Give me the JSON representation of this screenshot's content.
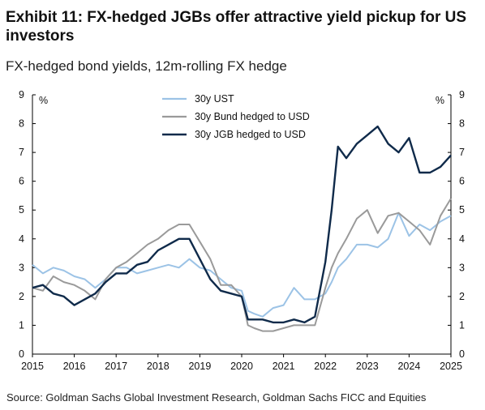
{
  "header": {
    "title": "Exhibit 11: FX-hedged JGBs offer attractive yield pickup for US investors",
    "subtitle": "FX-hedged bond yields, 12m-rolling FX hedge"
  },
  "footer": {
    "source": "Source: Goldman Sachs Global Investment Research, Goldman Sachs FICC and Equities"
  },
  "chart_data": {
    "type": "line",
    "title": "Exhibit 11: FX-hedged JGBs offer attractive yield pickup for US investors",
    "subtitle": "FX-hedged bond yields, 12m-rolling FX hedge",
    "ylabel_left": "%",
    "ylabel_right": "%",
    "xlim": [
      2015,
      2025
    ],
    "ylim": [
      0,
      9
    ],
    "x_ticks": [
      "2015",
      "2016",
      "2017",
      "2018",
      "2019",
      "2020",
      "2021",
      "2022",
      "2023",
      "2024",
      "2025"
    ],
    "y_ticks": [
      "0",
      "1",
      "2",
      "3",
      "4",
      "5",
      "6",
      "7",
      "8",
      "9"
    ],
    "grid": false,
    "legend_position": "top-center",
    "series": [
      {
        "name": "30y UST",
        "color": "#9cc3e6",
        "x": [
          2015.0,
          2015.25,
          2015.5,
          2015.75,
          2016.0,
          2016.25,
          2016.5,
          2016.75,
          2017.0,
          2017.25,
          2017.5,
          2017.75,
          2018.0,
          2018.25,
          2018.5,
          2018.75,
          2019.0,
          2019.25,
          2019.5,
          2019.75,
          2020.0,
          2020.15,
          2020.3,
          2020.5,
          2020.75,
          2021.0,
          2021.25,
          2021.5,
          2021.75,
          2022.0,
          2022.15,
          2022.3,
          2022.5,
          2022.75,
          2023.0,
          2023.25,
          2023.5,
          2023.75,
          2024.0,
          2024.25,
          2024.5,
          2024.75,
          2025.0
        ],
        "y": [
          3.1,
          2.8,
          3.0,
          2.9,
          2.7,
          2.6,
          2.3,
          2.6,
          3.0,
          3.0,
          2.8,
          2.9,
          3.0,
          3.1,
          3.0,
          3.3,
          3.0,
          2.9,
          2.6,
          2.3,
          2.2,
          1.5,
          1.4,
          1.3,
          1.6,
          1.7,
          2.3,
          1.9,
          1.9,
          2.1,
          2.5,
          3.0,
          3.3,
          3.8,
          3.8,
          3.7,
          4.0,
          4.9,
          4.1,
          4.5,
          4.3,
          4.6,
          4.8
        ]
      },
      {
        "name": "30y Bund hedged to USD",
        "color": "#9a9a9a",
        "x": [
          2015.0,
          2015.25,
          2015.5,
          2015.75,
          2016.0,
          2016.25,
          2016.5,
          2016.75,
          2017.0,
          2017.25,
          2017.5,
          2017.75,
          2018.0,
          2018.25,
          2018.5,
          2018.75,
          2019.0,
          2019.25,
          2019.5,
          2019.75,
          2020.0,
          2020.15,
          2020.3,
          2020.5,
          2020.75,
          2021.0,
          2021.25,
          2021.5,
          2021.75,
          2022.0,
          2022.15,
          2022.3,
          2022.5,
          2022.75,
          2023.0,
          2023.25,
          2023.5,
          2023.75,
          2024.0,
          2024.25,
          2024.5,
          2024.75,
          2025.0
        ],
        "y": [
          2.3,
          2.2,
          2.7,
          2.5,
          2.4,
          2.2,
          1.9,
          2.6,
          3.0,
          3.2,
          3.5,
          3.8,
          4.0,
          4.3,
          4.5,
          4.5,
          3.9,
          3.3,
          2.4,
          2.4,
          2.0,
          1.0,
          0.9,
          0.8,
          0.8,
          0.9,
          1.0,
          1.0,
          1.0,
          2.3,
          3.0,
          3.5,
          4.0,
          4.7,
          5.0,
          4.2,
          4.8,
          4.9,
          4.6,
          4.3,
          3.8,
          4.8,
          5.4
        ]
      },
      {
        "name": "30y JGB hedged to USD",
        "color": "#0f2a4a",
        "x": [
          2015.0,
          2015.25,
          2015.5,
          2015.75,
          2016.0,
          2016.25,
          2016.5,
          2016.75,
          2017.0,
          2017.25,
          2017.5,
          2017.75,
          2018.0,
          2018.25,
          2018.5,
          2018.75,
          2019.0,
          2019.25,
          2019.5,
          2019.75,
          2020.0,
          2020.15,
          2020.3,
          2020.5,
          2020.75,
          2021.0,
          2021.25,
          2021.5,
          2021.75,
          2022.0,
          2022.15,
          2022.3,
          2022.5,
          2022.75,
          2023.0,
          2023.25,
          2023.5,
          2023.75,
          2024.0,
          2024.25,
          2024.5,
          2024.75,
          2025.0
        ],
        "y": [
          2.3,
          2.4,
          2.1,
          2.0,
          1.7,
          1.9,
          2.1,
          2.5,
          2.8,
          2.8,
          3.1,
          3.2,
          3.6,
          3.8,
          4.0,
          4.0,
          3.3,
          2.6,
          2.2,
          2.1,
          2.0,
          1.2,
          1.2,
          1.2,
          1.1,
          1.1,
          1.2,
          1.1,
          1.3,
          3.2,
          5.0,
          7.2,
          6.8,
          7.3,
          7.6,
          7.9,
          7.3,
          7.0,
          7.5,
          6.3,
          6.3,
          6.5,
          6.9
        ]
      }
    ]
  }
}
